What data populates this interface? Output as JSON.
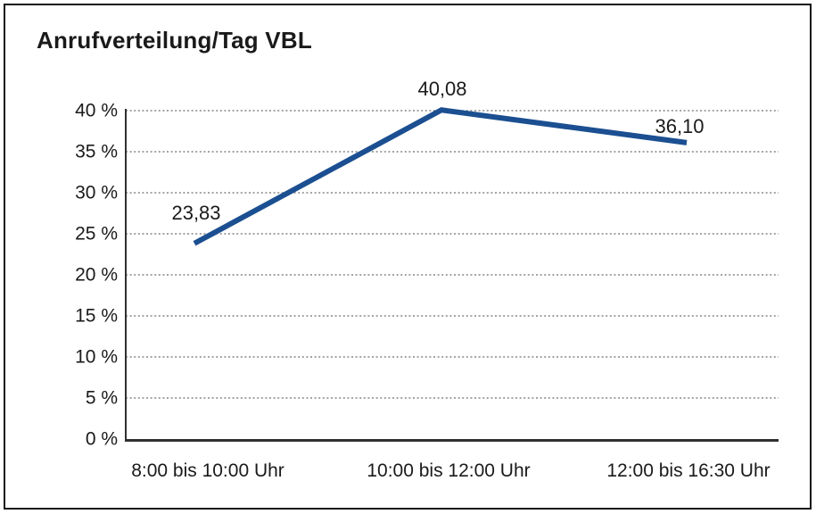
{
  "chart_data": {
    "type": "line",
    "title": "Anrufverteilung/Tag VBL",
    "categories": [
      "8:00 bis 10:00 Uhr",
      "10:00 bis 12:00 Uhr",
      "12:00 bis 16:30 Uhr"
    ],
    "series": [
      {
        "name": "Anrufverteilung/Tag VBL",
        "values": [
          23.83,
          40.08,
          36.1
        ]
      }
    ],
    "point_labels": [
      "23,83",
      "40,08",
      "36,10"
    ],
    "xlabel": "",
    "ylabel": "",
    "ylim": [
      0,
      40
    ],
    "ytick_step": 5,
    "ytick_labels": [
      "0 %",
      "5 %",
      "10 %",
      "15 %",
      "20 %",
      "25 %",
      "30 %",
      "35 %",
      "40 %"
    ],
    "grid": "horizontal-dotted",
    "legend_position": "none",
    "colors": {
      "line": "#1b4f91",
      "axis": "#303030",
      "gridline": "#6e6e6e",
      "text": "#1a1a1a",
      "background": "#ffffff",
      "border": "#161616"
    }
  }
}
